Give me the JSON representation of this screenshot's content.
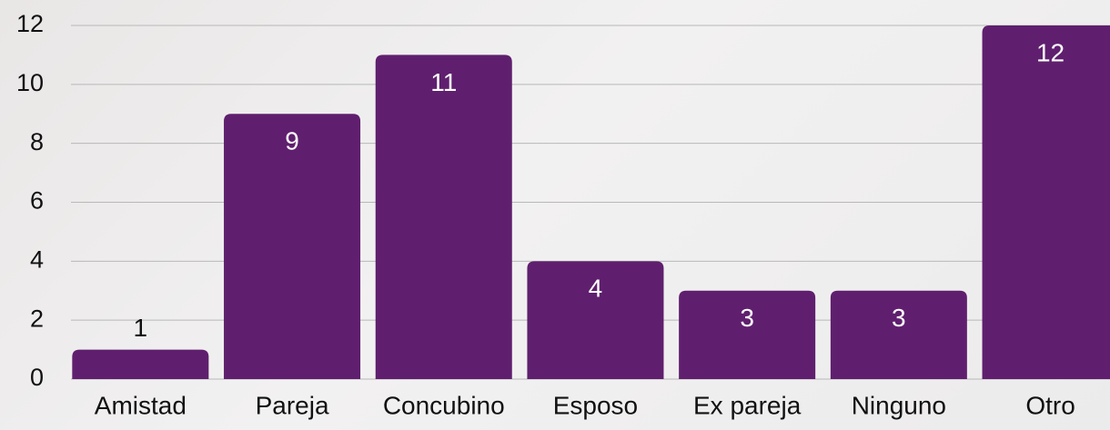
{
  "chart_data": {
    "type": "bar",
    "categories": [
      "Amistad",
      "Pareja",
      "Concubino",
      "Esposo",
      "Ex pareja",
      "Ninguno",
      "Otro"
    ],
    "values": [
      1,
      9,
      11,
      4,
      3,
      3,
      12
    ],
    "color": "#5f1f6e",
    "ylim": [
      0,
      12
    ],
    "yticks": [
      0,
      2,
      4,
      6,
      8,
      10,
      12
    ],
    "grid": true
  }
}
